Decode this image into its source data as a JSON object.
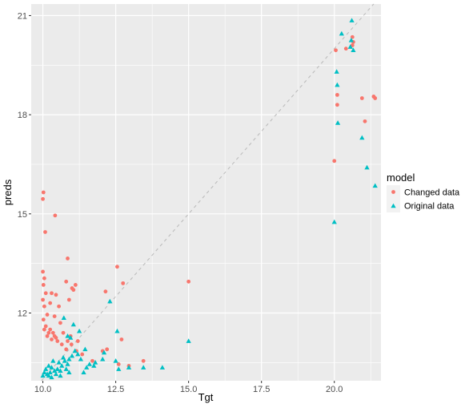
{
  "chart_data": {
    "type": "scatter",
    "xlabel": "Tgt",
    "ylabel": "preds",
    "xlim": [
      9.6,
      21.6
    ],
    "ylim": [
      9.95,
      21.35
    ],
    "x_ticks": [
      10.0,
      12.5,
      15.0,
      17.5,
      20.0
    ],
    "x_tick_labels": [
      "10.0",
      "12.5",
      "15.0",
      "17.5",
      "20.0"
    ],
    "y_ticks": [
      12,
      15,
      18,
      21
    ],
    "y_tick_labels": [
      "12",
      "15",
      "18",
      "21"
    ],
    "grid": true,
    "reference_line": {
      "type": "identity",
      "style": "dashed",
      "color": "#bdbdbd"
    },
    "legend": {
      "title": "model",
      "position": "right"
    },
    "colors": {
      "panel": "#ebebeb",
      "grid": "#ffffff",
      "changed": "#f8766d",
      "original": "#00bfc4"
    },
    "series": [
      {
        "name": "Changed data",
        "marker": "circle",
        "color": "#f8766d",
        "points": [
          [
            10.02,
            15.65
          ],
          [
            10.0,
            15.45
          ],
          [
            10.08,
            14.45
          ],
          [
            10.42,
            14.95
          ],
          [
            10.0,
            13.25
          ],
          [
            10.05,
            13.05
          ],
          [
            10.02,
            12.85
          ],
          [
            10.1,
            12.6
          ],
          [
            10.0,
            12.4
          ],
          [
            10.05,
            12.2
          ],
          [
            10.15,
            11.95
          ],
          [
            10.25,
            12.3
          ],
          [
            10.3,
            12.6
          ],
          [
            10.45,
            12.55
          ],
          [
            10.55,
            12.2
          ],
          [
            10.8,
            12.95
          ],
          [
            10.85,
            13.65
          ],
          [
            10.9,
            12.4
          ],
          [
            11.0,
            12.75
          ],
          [
            11.05,
            12.7
          ],
          [
            11.12,
            12.85
          ],
          [
            10.6,
            11.7
          ],
          [
            10.7,
            11.4
          ],
          [
            10.95,
            11.3
          ],
          [
            11.2,
            11.15
          ],
          [
            10.5,
            11.15
          ],
          [
            10.4,
            11.9
          ],
          [
            12.15,
            12.65
          ],
          [
            12.55,
            13.4
          ],
          [
            12.75,
            12.9
          ],
          [
            15.0,
            12.95
          ],
          [
            12.7,
            11.2
          ],
          [
            12.2,
            10.9
          ],
          [
            12.05,
            10.85
          ],
          [
            13.45,
            10.55
          ],
          [
            12.6,
            10.45
          ],
          [
            12.95,
            10.4
          ],
          [
            11.7,
            10.55
          ],
          [
            11.35,
            10.75
          ],
          [
            11.15,
            10.85
          ],
          [
            10.98,
            11.05
          ],
          [
            10.8,
            10.9
          ],
          [
            10.85,
            11.15
          ],
          [
            10.65,
            11.05
          ],
          [
            10.02,
            11.8
          ],
          [
            10.1,
            11.6
          ],
          [
            10.2,
            11.4
          ],
          [
            10.3,
            11.2
          ],
          [
            10.25,
            11.5
          ],
          [
            10.35,
            11.4
          ],
          [
            10.4,
            11.3
          ],
          [
            10.45,
            11.25
          ],
          [
            10.05,
            11.5
          ],
          [
            10.15,
            11.3
          ],
          [
            20.0,
            16.6
          ],
          [
            20.1,
            18.3
          ],
          [
            20.1,
            18.6
          ],
          [
            20.05,
            19.95
          ],
          [
            20.4,
            20.0
          ],
          [
            20.62,
            20.35
          ],
          [
            20.65,
            20.2
          ],
          [
            20.62,
            20.1
          ],
          [
            20.95,
            18.5
          ],
          [
            21.05,
            17.8
          ],
          [
            21.35,
            18.55
          ],
          [
            21.4,
            18.5
          ]
        ]
      },
      {
        "name": "Original data",
        "marker": "triangle",
        "color": "#00bfc4",
        "points": [
          [
            20.0,
            14.75
          ],
          [
            20.12,
            17.75
          ],
          [
            20.1,
            18.9
          ],
          [
            20.08,
            19.3
          ],
          [
            20.25,
            20.45
          ],
          [
            20.6,
            20.85
          ],
          [
            20.58,
            20.25
          ],
          [
            20.55,
            20.05
          ],
          [
            20.65,
            19.95
          ],
          [
            20.95,
            17.3
          ],
          [
            21.12,
            16.4
          ],
          [
            21.4,
            15.85
          ],
          [
            15.0,
            11.15
          ],
          [
            14.1,
            10.35
          ],
          [
            13.45,
            10.35
          ],
          [
            12.95,
            10.35
          ],
          [
            12.6,
            10.3
          ],
          [
            12.55,
            11.45
          ],
          [
            12.5,
            10.55
          ],
          [
            12.3,
            12.35
          ],
          [
            12.1,
            10.8
          ],
          [
            12.05,
            10.6
          ],
          [
            11.8,
            10.5
          ],
          [
            11.75,
            10.4
          ],
          [
            11.6,
            10.45
          ],
          [
            11.5,
            10.35
          ],
          [
            11.3,
            10.6
          ],
          [
            11.2,
            10.75
          ],
          [
            11.1,
            10.85
          ],
          [
            11.0,
            10.7
          ],
          [
            10.9,
            10.6
          ],
          [
            10.85,
            10.45
          ],
          [
            10.8,
            10.3
          ],
          [
            10.75,
            10.55
          ],
          [
            10.7,
            10.65
          ],
          [
            10.65,
            10.4
          ],
          [
            10.6,
            10.25
          ],
          [
            10.55,
            10.5
          ],
          [
            10.5,
            10.3
          ],
          [
            10.45,
            10.15
          ],
          [
            10.4,
            10.25
          ],
          [
            10.35,
            10.55
          ],
          [
            10.3,
            10.35
          ],
          [
            10.25,
            10.2
          ],
          [
            10.2,
            10.4
          ],
          [
            10.15,
            10.15
          ],
          [
            10.1,
            10.3
          ],
          [
            10.05,
            10.2
          ],
          [
            10.0,
            10.1
          ],
          [
            10.95,
            11.25
          ],
          [
            11.05,
            11.65
          ],
          [
            10.72,
            11.85
          ],
          [
            10.85,
            11.3
          ],
          [
            11.25,
            11.45
          ],
          [
            11.45,
            10.9
          ],
          [
            10.2,
            10.1
          ],
          [
            10.3,
            10.05
          ],
          [
            10.6,
            10.1
          ],
          [
            10.9,
            10.2
          ],
          [
            11.4,
            10.2
          ]
        ]
      }
    ]
  }
}
